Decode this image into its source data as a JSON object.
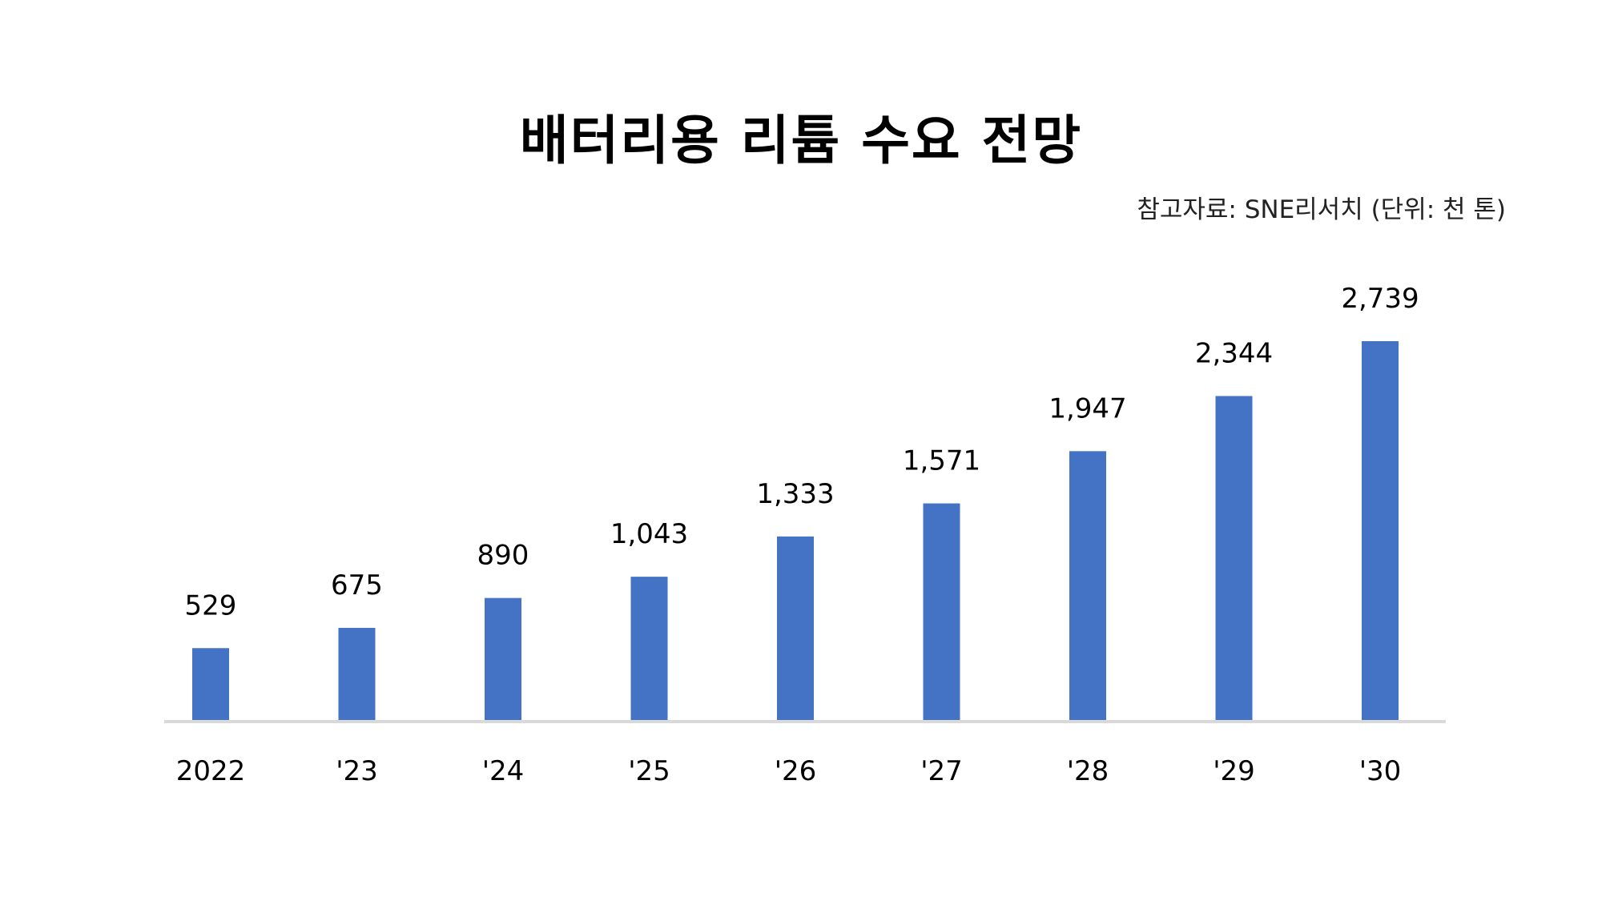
{
  "title": "배터리용 리튬 수요 전망",
  "source_note": "참고자료: SNE리서치 (단위: 천 톤)",
  "colors": {
    "bar": "#4472C4",
    "axis": "#D9D9D9",
    "text": "#000000"
  },
  "chart_data": {
    "type": "bar",
    "title": "배터리용 리튬 수요 전망",
    "unit": "천 톤",
    "source": "SNE리서치",
    "categories": [
      "2022",
      "'23",
      "'24",
      "'25",
      "'26",
      "'27",
      "'28",
      "'29",
      "'30"
    ],
    "values": [
      529,
      675,
      890,
      1043,
      1333,
      1571,
      1947,
      2344,
      2739
    ],
    "value_labels": [
      "529",
      "675",
      "890",
      "1,043",
      "1,333",
      "1,571",
      "1,947",
      "2,344",
      "2,739"
    ],
    "ylim": [
      0,
      2739
    ],
    "grid": false,
    "legend": "none",
    "data_labels": true
  }
}
